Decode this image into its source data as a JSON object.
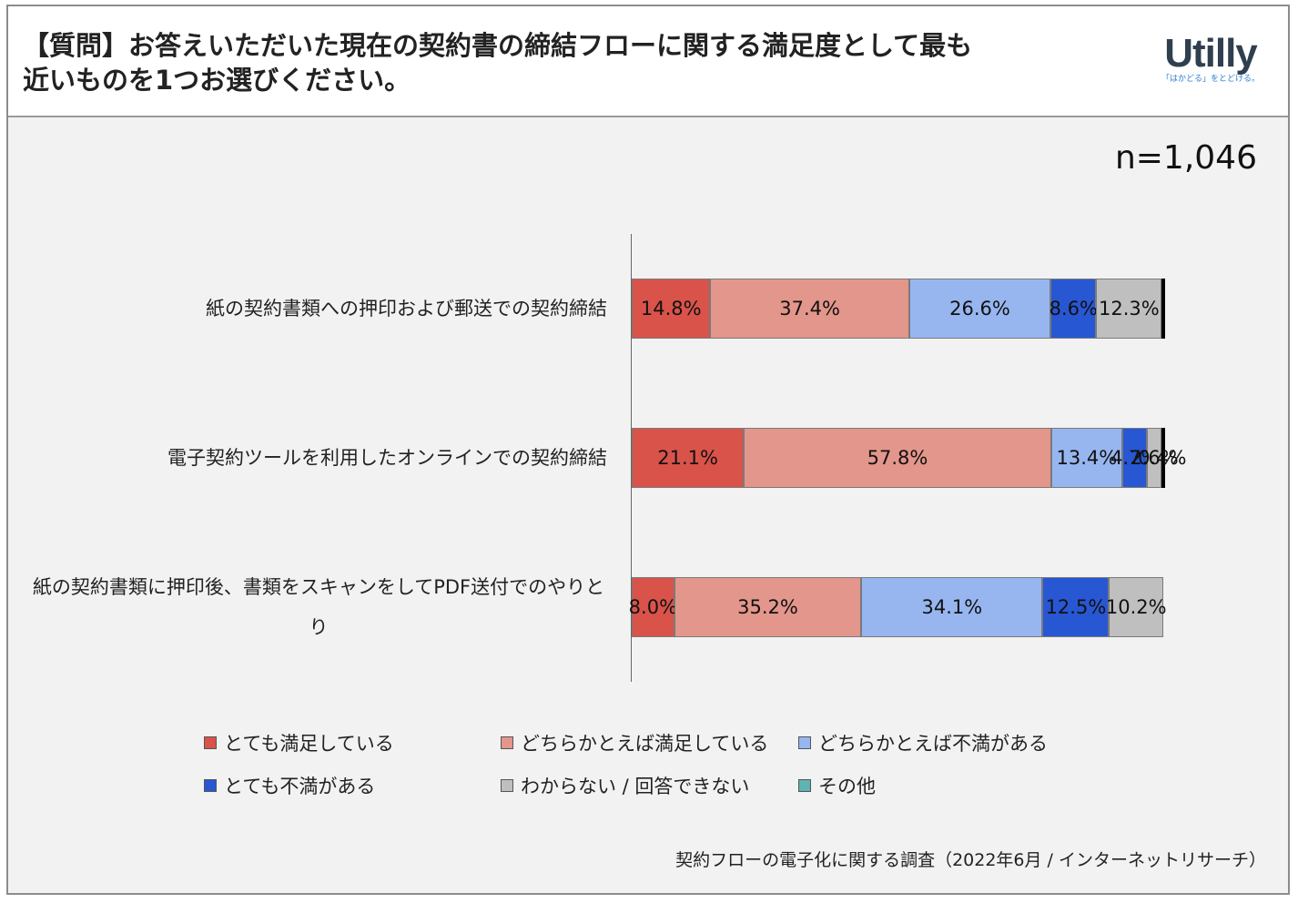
{
  "header": {
    "title_line1": "【質問】お答えいただいた現在の契約書の締結フローに関する満足度として最も",
    "title_line2": "近いものを1つお選びください。",
    "logo_word": "Utilly",
    "logo_tagline": "「はかどる」をとどける。"
  },
  "sample_size": "n=1,046",
  "source": "契約フローの電子化に関する調査（2022年6月 / インターネットリサーチ）",
  "colors": {
    "very_satisfied": "#d9534a",
    "somewhat_satisfied": "#e3968b",
    "somewhat_dissatisfied": "#97b6f0",
    "very_dissatisfied": "#2857d4",
    "dont_know": "#bfbfbf",
    "other": "#5fb3b3"
  },
  "chart_data": {
    "type": "bar",
    "orientation": "horizontal",
    "stacked": true,
    "percent_stacked": true,
    "xlim": [
      0,
      100
    ],
    "categories": [
      "紙の契約書類への押印および郵送での契約締結",
      "電子契約ツールを利用したオンラインでの契約締結",
      "紙の契約書類に押印後、書類をスキャンをしてPDF送付でのやりとり"
    ],
    "series": [
      {
        "name": "とても満足している",
        "values": [
          14.8,
          21.1,
          8.0
        ],
        "labels": [
          "14.8%",
          "21.1%",
          "8.0%"
        ]
      },
      {
        "name": "どちらかとえば満足している",
        "values": [
          37.4,
          57.8,
          35.2
        ],
        "labels": [
          "37.4%",
          "57.8%",
          "35.2%"
        ]
      },
      {
        "name": "どちらかとえば不満がある",
        "values": [
          26.6,
          13.4,
          34.1
        ],
        "labels": [
          "26.6%",
          "13.4%",
          "34.1%"
        ]
      },
      {
        "name": "とても不満がある",
        "values": [
          8.6,
          4.7,
          12.5
        ],
        "labels": [
          "8.6%",
          "4.7%",
          "12.5%"
        ]
      },
      {
        "name": "わからない / 回答できない",
        "values": [
          12.3,
          2.6,
          10.2
        ],
        "labels": [
          "12.3%",
          "2.6%",
          "10.2%"
        ]
      },
      {
        "name": "その他",
        "values": [
          0.3,
          0.4,
          0.0
        ],
        "labels": [
          "",
          "0.4%",
          ""
        ]
      }
    ],
    "legend": "bottom"
  }
}
